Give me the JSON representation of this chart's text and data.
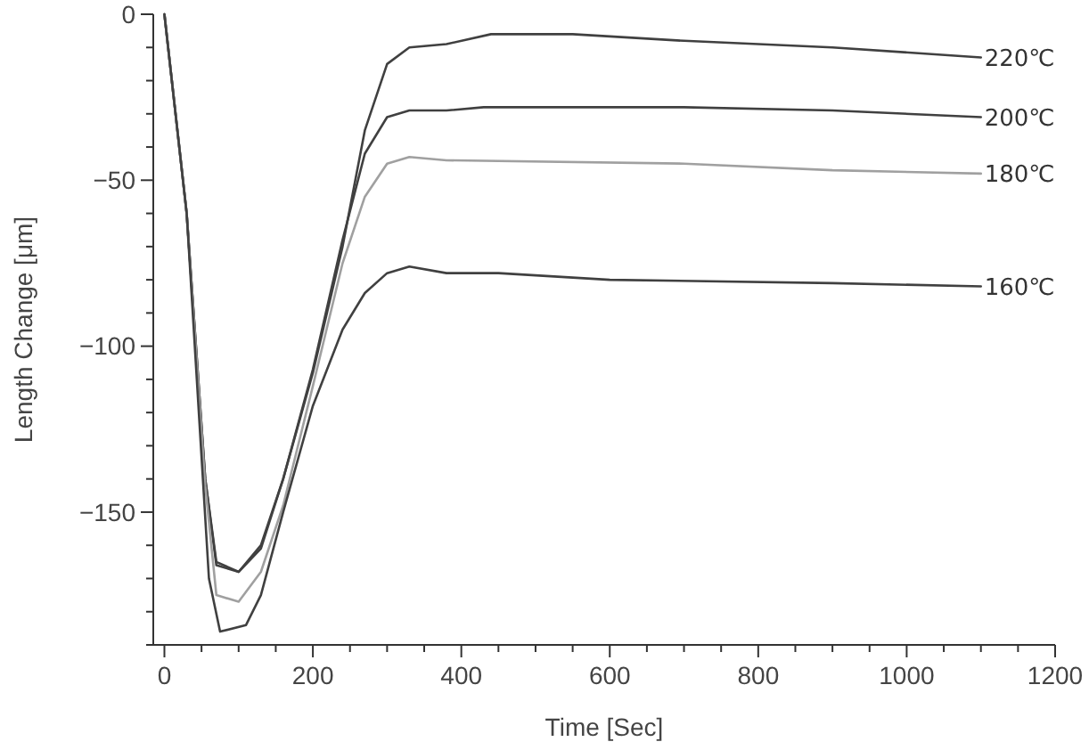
{
  "chart_data": {
    "type": "line",
    "xlabel": "Time [Sec]",
    "ylabel": "Length Change [μm]",
    "xlim": [
      -15,
      1200
    ],
    "ylim": [
      -190,
      0
    ],
    "xticks": [
      0,
      200,
      400,
      600,
      800,
      1000,
      1200,
      {
        "value": 50,
        "label": null
      },
      {
        "value": 100,
        "label": null
      },
      {
        "value": 150,
        "label": null
      },
      {
        "value": 250,
        "label": null
      },
      {
        "value": 300,
        "label": null
      },
      {
        "value": 350,
        "label": null
      },
      {
        "value": 450,
        "label": null
      },
      {
        "value": 500,
        "label": null
      },
      {
        "value": 550,
        "label": null
      },
      {
        "value": 650,
        "label": null
      },
      {
        "value": 700,
        "label": null
      },
      {
        "value": 750,
        "label": null
      },
      {
        "value": 850,
        "label": null
      },
      {
        "value": 900,
        "label": null
      },
      {
        "value": 950,
        "label": null
      },
      {
        "value": 1050,
        "label": null
      },
      {
        "value": 1100,
        "label": null
      },
      {
        "value": 1150,
        "label": null
      }
    ],
    "yticks": [
      0,
      -50,
      -100,
      -150,
      {
        "value": -10,
        "label": null
      },
      {
        "value": -20,
        "label": null
      },
      {
        "value": -30,
        "label": null
      },
      {
        "value": -40,
        "label": null
      },
      {
        "value": -60,
        "label": null
      },
      {
        "value": -70,
        "label": null
      },
      {
        "value": -80,
        "label": null
      },
      {
        "value": -90,
        "label": null
      },
      {
        "value": -110,
        "label": null
      },
      {
        "value": -120,
        "label": null
      },
      {
        "value": -130,
        "label": null
      },
      {
        "value": -140,
        "label": null
      },
      {
        "value": -160,
        "label": null
      },
      {
        "value": -170,
        "label": null
      },
      {
        "value": -180,
        "label": null
      },
      {
        "value": -190,
        "label": null
      }
    ],
    "grid": false,
    "legend": false,
    "marker": "none",
    "line_style": "solid",
    "series": [
      {
        "name": "220℃",
        "color": "#404040",
        "x": [
          0,
          30,
          55,
          70,
          100,
          130,
          160,
          200,
          240,
          270,
          300,
          330,
          380,
          440,
          550,
          700,
          900,
          1100
        ],
        "values": [
          0,
          -60,
          -140,
          -165,
          -168,
          -160,
          -140,
          -108,
          -70,
          -35,
          -15,
          -10,
          -9,
          -6,
          -6,
          -8,
          -10,
          -13
        ]
      },
      {
        "name": "200℃",
        "color": "#404040",
        "x": [
          0,
          30,
          55,
          70,
          100,
          130,
          160,
          200,
          240,
          270,
          300,
          330,
          380,
          430,
          700,
          900,
          1100
        ],
        "values": [
          0,
          -60,
          -140,
          -166,
          -168,
          -161,
          -140,
          -107,
          -68,
          -42,
          -31,
          -29,
          -29,
          -28,
          -28,
          -29,
          -31
        ]
      },
      {
        "name": "180℃",
        "color": "#a0a0a0",
        "x": [
          0,
          30,
          55,
          70,
          100,
          130,
          160,
          200,
          240,
          270,
          300,
          330,
          380,
          700,
          900,
          1100
        ],
        "values": [
          0,
          -60,
          -142,
          -175,
          -177,
          -168,
          -148,
          -112,
          -75,
          -55,
          -45,
          -43,
          -44,
          -45,
          -47,
          -48
        ]
      },
      {
        "name": "160℃",
        "color": "#404040",
        "x": [
          0,
          30,
          60,
          75,
          110,
          130,
          160,
          200,
          240,
          270,
          300,
          330,
          380,
          450,
          600,
          900,
          1100
        ],
        "values": [
          0,
          -60,
          -170,
          -186,
          -184,
          -175,
          -150,
          -118,
          -95,
          -84,
          -78,
          -76,
          -78,
          -78,
          -80,
          -81,
          -82
        ]
      }
    ]
  }
}
